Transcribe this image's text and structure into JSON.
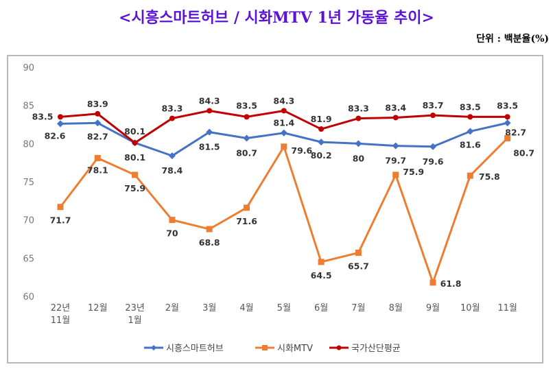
{
  "title": "<시흥스마트허브 / 시화MTV 1년 가동율 추이>",
  "unit_label": "단위 : 백분율(%)",
  "chart_data": {
    "type": "line",
    "categories": [
      [
        "22년",
        "11월"
      ],
      [
        "12월"
      ],
      [
        "23년",
        "1월"
      ],
      [
        "2월"
      ],
      [
        "3월"
      ],
      [
        "4월"
      ],
      [
        "5월"
      ],
      [
        "6월"
      ],
      [
        "7월"
      ],
      [
        "8월"
      ],
      [
        "9월"
      ],
      [
        "10월"
      ],
      [
        "11월"
      ]
    ],
    "ylim": [
      60,
      90
    ],
    "yticks": [
      60,
      65,
      70,
      75,
      80,
      85,
      90
    ],
    "grid": false,
    "legend_position": "bottom",
    "series": [
      {
        "name": "시흥스마트허브",
        "color": "#4472c4",
        "marker": "diamond",
        "values": [
          82.6,
          82.7,
          80.1,
          78.4,
          81.5,
          80.7,
          81.4,
          80.2,
          80,
          79.7,
          79.6,
          81.6,
          82.7
        ]
      },
      {
        "name": "시화MTV",
        "color": "#ed7d31",
        "marker": "square",
        "values": [
          71.7,
          78.1,
          75.9,
          70,
          68.8,
          71.6,
          79.6,
          64.5,
          65.7,
          75.9,
          61.8,
          75.8,
          80.7
        ]
      },
      {
        "name": "국가산단평균",
        "color": "#c00000",
        "marker": "circle",
        "values": [
          83.5,
          83.9,
          80.1,
          83.3,
          84.3,
          83.5,
          84.3,
          81.9,
          83.3,
          83.4,
          83.7,
          83.5,
          83.5
        ]
      }
    ]
  }
}
